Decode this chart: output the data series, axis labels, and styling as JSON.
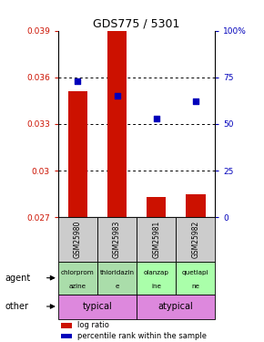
{
  "title": "GDS775 / 5301",
  "samples": [
    "GSM25980",
    "GSM25983",
    "GSM25981",
    "GSM25982"
  ],
  "bar_values": [
    0.0351,
    0.039,
    0.0283,
    0.0285
  ],
  "bar_baseline": 0.027,
  "dot_pct": [
    73,
    65,
    53,
    62
  ],
  "ylim_left": [
    0.027,
    0.039
  ],
  "ylim_right": [
    0,
    100
  ],
  "yticks_left": [
    0.027,
    0.03,
    0.033,
    0.036,
    0.039
  ],
  "yticks_right": [
    0,
    25,
    50,
    75,
    100
  ],
  "ytick_labels_left": [
    "0.027",
    "0.03",
    "0.033",
    "0.036",
    "0.039"
  ],
  "ytick_labels_right": [
    "0",
    "25",
    "50",
    "75",
    "100%"
  ],
  "agent_labels_top": [
    "chlorprom",
    "thioridazin",
    "olanzap",
    "quetiapi"
  ],
  "agent_labels_bot": [
    "azine",
    "e",
    "ine",
    "ne"
  ],
  "agent_bg_left": "#aaddaa",
  "agent_bg_right": "#aaffaa",
  "other_typical_color": "#dd88dd",
  "other_atypical_color": "#ee66ee",
  "bar_color": "#cc1100",
  "dot_color": "#0000bb",
  "bar_width": 0.5,
  "grid_dotted_at": [
    0.03,
    0.033,
    0.036
  ]
}
